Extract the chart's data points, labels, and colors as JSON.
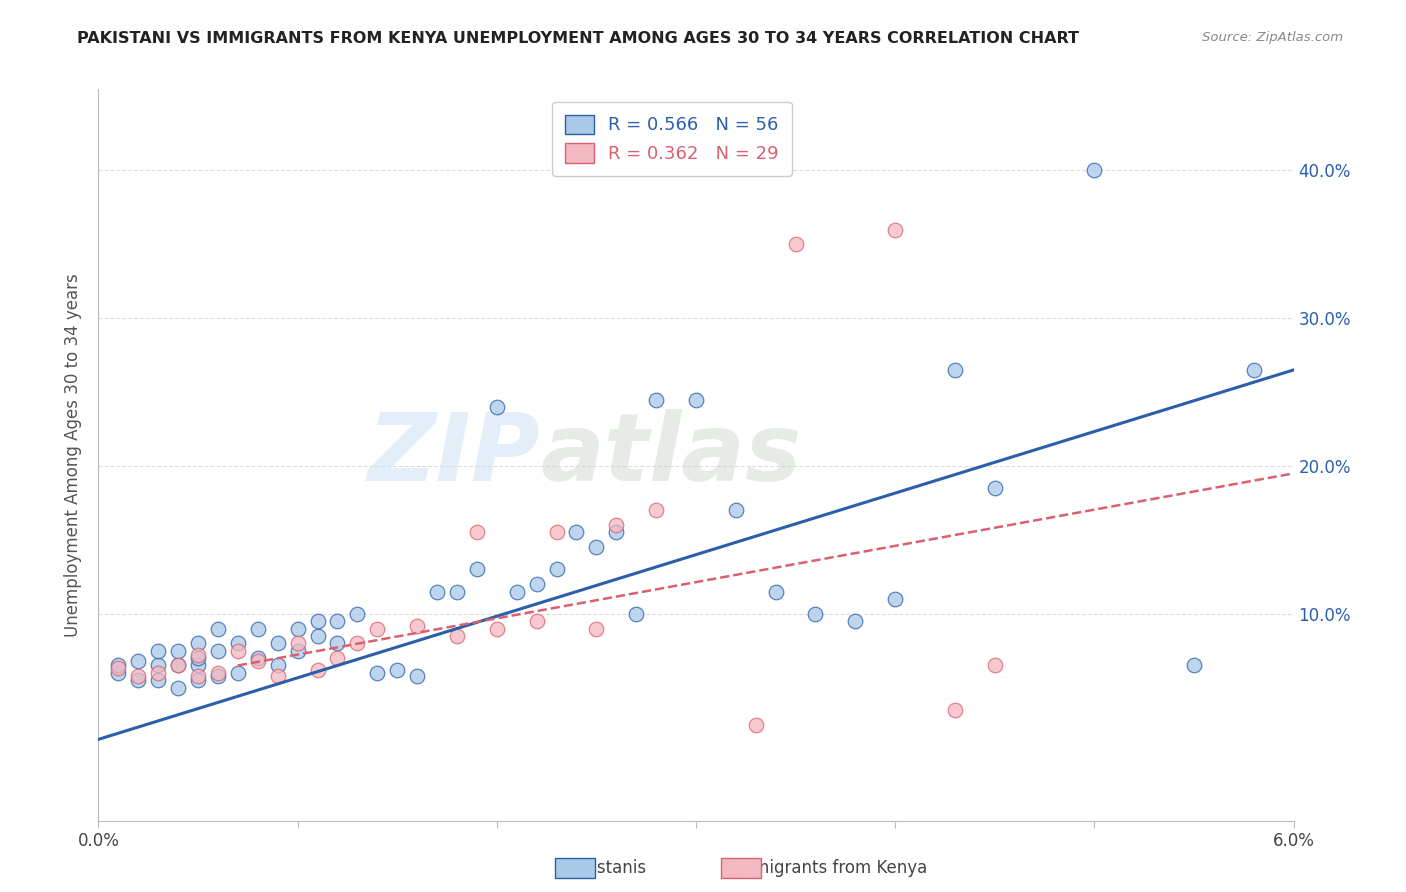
{
  "title": "PAKISTANI VS IMMIGRANTS FROM KENYA UNEMPLOYMENT AMONG AGES 30 TO 34 YEARS CORRELATION CHART",
  "source": "Source: ZipAtlas.com",
  "ylabel": "Unemployment Among Ages 30 to 34 years",
  "ytick_labels": [
    "10.0%",
    "20.0%",
    "30.0%",
    "40.0%"
  ],
  "ytick_values": [
    0.1,
    0.2,
    0.3,
    0.4
  ],
  "xmin": 0.0,
  "xmax": 0.06,
  "ymin": -0.04,
  "ymax": 0.455,
  "legend_entries": [
    {
      "label": "R = 0.566   N = 56",
      "color": "#7bafd4"
    },
    {
      "label": "R = 0.362   N = 29",
      "color": "#f4a7b0"
    }
  ],
  "pakistanis_scatter_x": [
    0.001,
    0.001,
    0.002,
    0.002,
    0.003,
    0.003,
    0.003,
    0.004,
    0.004,
    0.004,
    0.005,
    0.005,
    0.005,
    0.005,
    0.006,
    0.006,
    0.006,
    0.007,
    0.007,
    0.008,
    0.008,
    0.009,
    0.009,
    0.01,
    0.01,
    0.011,
    0.011,
    0.012,
    0.012,
    0.013,
    0.014,
    0.015,
    0.016,
    0.017,
    0.018,
    0.019,
    0.02,
    0.021,
    0.022,
    0.023,
    0.024,
    0.025,
    0.026,
    0.027,
    0.028,
    0.03,
    0.032,
    0.034,
    0.036,
    0.038,
    0.04,
    0.043,
    0.045,
    0.05,
    0.055,
    0.058
  ],
  "pakistanis_scatter_y": [
    0.06,
    0.065,
    0.055,
    0.068,
    0.055,
    0.065,
    0.075,
    0.05,
    0.065,
    0.075,
    0.055,
    0.065,
    0.07,
    0.08,
    0.058,
    0.075,
    0.09,
    0.06,
    0.08,
    0.07,
    0.09,
    0.065,
    0.08,
    0.075,
    0.09,
    0.085,
    0.095,
    0.08,
    0.095,
    0.1,
    0.06,
    0.062,
    0.058,
    0.115,
    0.115,
    0.13,
    0.24,
    0.115,
    0.12,
    0.13,
    0.155,
    0.145,
    0.155,
    0.1,
    0.245,
    0.245,
    0.17,
    0.115,
    0.1,
    0.095,
    0.11,
    0.265,
    0.185,
    0.4,
    0.065,
    0.265
  ],
  "kenya_scatter_x": [
    0.001,
    0.002,
    0.003,
    0.004,
    0.005,
    0.005,
    0.006,
    0.007,
    0.008,
    0.009,
    0.01,
    0.011,
    0.012,
    0.013,
    0.014,
    0.016,
    0.018,
    0.019,
    0.02,
    0.022,
    0.023,
    0.025,
    0.026,
    0.028,
    0.033,
    0.035,
    0.04,
    0.043,
    0.045
  ],
  "kenya_scatter_y": [
    0.063,
    0.058,
    0.06,
    0.065,
    0.058,
    0.072,
    0.06,
    0.075,
    0.068,
    0.058,
    0.08,
    0.062,
    0.07,
    0.08,
    0.09,
    0.092,
    0.085,
    0.155,
    0.09,
    0.095,
    0.155,
    0.09,
    0.16,
    0.17,
    0.025,
    0.35,
    0.36,
    0.035,
    0.065
  ],
  "pakistanis_line_x": [
    0.0,
    0.06
  ],
  "pakistanis_line_y": [
    0.015,
    0.265
  ],
  "kenya_line_x": [
    0.007,
    0.06
  ],
  "kenya_line_y": [
    0.065,
    0.195
  ],
  "scatter_color_pakistanis": "#aac8e8",
  "scatter_color_kenya": "#f4b8c1",
  "line_color_pakistanis": "#2b5faa",
  "line_color_kenya": "#d9606e",
  "watermark_text": "ZIP",
  "watermark_text2": "atlas",
  "background_color": "#ffffff",
  "grid_color": "#dddddd"
}
